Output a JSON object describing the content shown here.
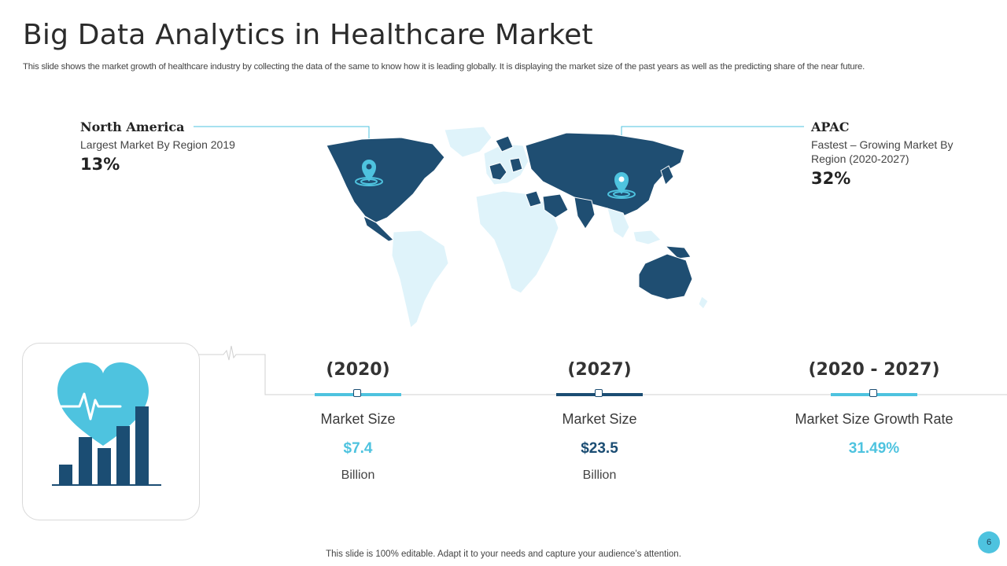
{
  "title": "Big Data Analytics in Healthcare Market",
  "subtitle": "This slide shows the market growth of healthcare industry  by collecting the data of the same to know how it is leading  globally. It is displaying the market size of the past years as well as the predicting share of the near future.",
  "colors": {
    "dark_blue": "#1b4d73",
    "light_blue": "#4ec3df",
    "map_light": "#dff3fa",
    "map_dark": "#1f4e72"
  },
  "regions": {
    "north_america": {
      "name": "North America",
      "description": "Largest Market By Region 2019",
      "value": "13%"
    },
    "apac": {
      "name": "APAC",
      "description": "Fastest – Growing Market By Region (2020-2027)",
      "value": "32%"
    }
  },
  "icon": "heart-pulse-bar-chart-icon",
  "stats": [
    {
      "period": "(2020)",
      "label": "Market Size",
      "value": "$7.4",
      "unit": "Billion",
      "color": "#4ec3df"
    },
    {
      "period": "(2027)",
      "label": "Market Size",
      "value": "$23.5",
      "unit": "Billion",
      "color": "#1b4d73"
    },
    {
      "period": "(2020 - 2027)",
      "label": "Market Size Growth Rate",
      "value": "31.49%",
      "unit": "",
      "color": "#4ec3df"
    }
  ],
  "footer": "This slide is 100% editable. Adapt it to your needs and capture your audience’s attention.",
  "page_number": "6"
}
